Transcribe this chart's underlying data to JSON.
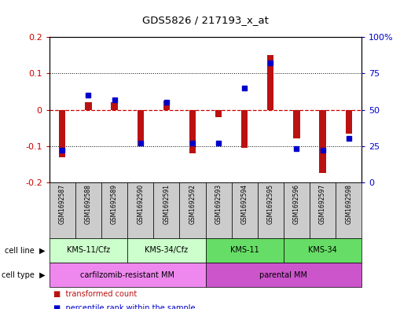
{
  "title": "GDS5826 / 217193_x_at",
  "samples": [
    "GSM1692587",
    "GSM1692588",
    "GSM1692589",
    "GSM1692590",
    "GSM1692591",
    "GSM1692592",
    "GSM1692593",
    "GSM1692594",
    "GSM1692595",
    "GSM1692596",
    "GSM1692597",
    "GSM1692598"
  ],
  "transformed_count": [
    -0.13,
    0.02,
    0.02,
    -0.1,
    0.025,
    -0.12,
    -0.02,
    -0.105,
    0.15,
    -0.08,
    -0.175,
    -0.065
  ],
  "percentile_rank": [
    22,
    60,
    57,
    27,
    55,
    27,
    27,
    65,
    82,
    23,
    22,
    30
  ],
  "ylim_left": [
    -0.2,
    0.2
  ],
  "ylim_right": [
    0,
    100
  ],
  "yticks_left": [
    -0.2,
    -0.1,
    0,
    0.1,
    0.2
  ],
  "yticks_right": [
    0,
    25,
    50,
    75,
    100
  ],
  "bar_color": "#bb1111",
  "dot_color": "#0000cc",
  "zero_line_color": "#cc0000",
  "grid_color": "#000000",
  "cell_line_groups": [
    {
      "label": "KMS-11/Cfz",
      "start": 0,
      "end": 3,
      "color": "#ccffcc"
    },
    {
      "label": "KMS-34/Cfz",
      "start": 3,
      "end": 6,
      "color": "#ccffcc"
    },
    {
      "label": "KMS-11",
      "start": 6,
      "end": 9,
      "color": "#66dd66"
    },
    {
      "label": "KMS-34",
      "start": 9,
      "end": 12,
      "color": "#66dd66"
    }
  ],
  "cell_type_groups": [
    {
      "label": "carfilzomib-resistant MM",
      "start": 0,
      "end": 6,
      "color": "#ee88ee"
    },
    {
      "label": "parental MM",
      "start": 6,
      "end": 12,
      "color": "#cc55cc"
    }
  ],
  "bg_color": "#ffffff",
  "plot_bg_color": "#ffffff",
  "tick_label_color_left": "#cc0000",
  "tick_label_color_right": "#0000cc",
  "title_color": "#000000",
  "sample_box_color": "#cccccc",
  "bar_width": 0.25
}
